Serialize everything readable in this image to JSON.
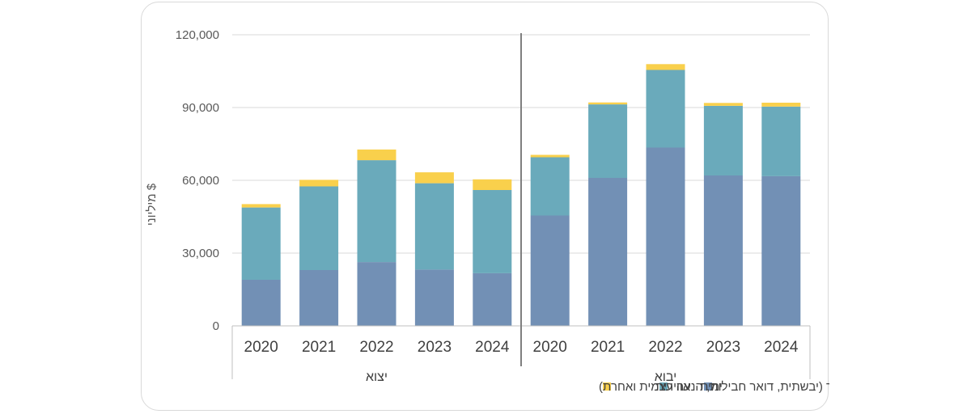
{
  "chart_data": {
    "type": "bar",
    "stacked": true,
    "ylabel": "מיליוני $",
    "ylim": [
      0,
      120000
    ],
    "yticks": [
      "0",
      "30,000",
      "60,000",
      "90,000",
      "120,000"
    ],
    "ytick_values": [
      0,
      30000,
      60000,
      90000,
      120000
    ],
    "grid": true,
    "legend_position": "bottom",
    "groups": [
      {
        "label": "יצוא",
        "categories": [
          "2020",
          "2021",
          "2022",
          "2023",
          "2024"
        ]
      },
      {
        "label": "יבוא",
        "categories": [
          "2020",
          "2021",
          "2022",
          "2023",
          "2024"
        ]
      }
    ],
    "series": [
      {
        "name": "ימית",
        "color": "#7290b5",
        "values": [
          19000,
          23000,
          26300,
          23200,
          21700,
          45500,
          61000,
          73500,
          62000,
          61700
        ]
      },
      {
        "name": "אווירית",
        "color": "#6aaabb",
        "values": [
          29800,
          34500,
          42000,
          35600,
          34300,
          24000,
          30300,
          32000,
          28700,
          28700
        ]
      },
      {
        "name": "אחר (יבשתית, דואר חבילות, הנעה עצמית ואחרת)",
        "color": "#f9d04c",
        "values": [
          1400,
          2700,
          4400,
          4500,
          4400,
          1000,
          800,
          2400,
          1200,
          1600
        ]
      }
    ]
  }
}
